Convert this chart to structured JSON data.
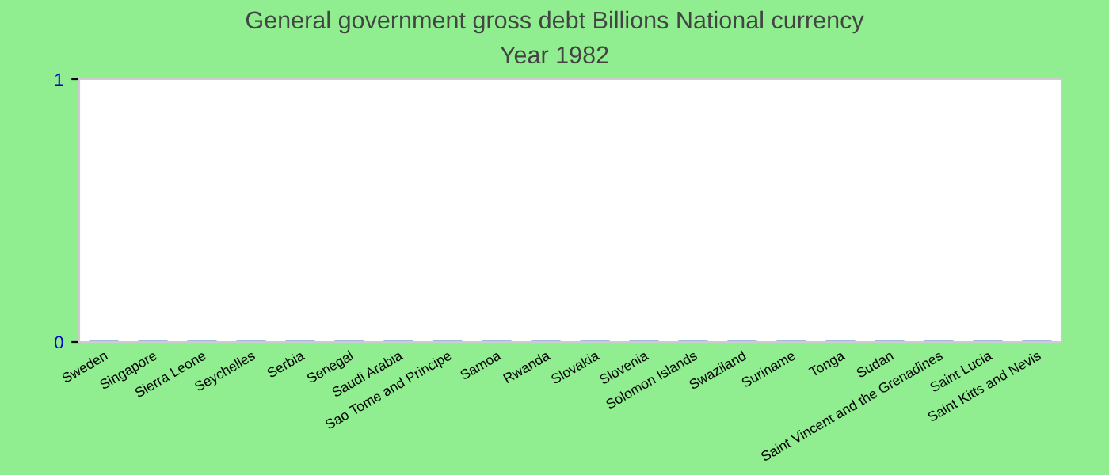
{
  "chart_data": {
    "type": "bar",
    "title": "General government gross debt Billions National currency",
    "subtitle": "Year 1982",
    "categories": [
      "Sweden",
      "Singapore",
      "Sierra Leone",
      "Seychelles",
      "Serbia",
      "Senegal",
      "Saudi Arabia",
      "Sao Tome and Principe",
      "Samoa",
      "Rwanda",
      "Slovakia",
      "Slovenia",
      "Solomon Islands",
      "Swaziland",
      "Suriname",
      "Tonga",
      "Sudan",
      "Saint Vincent and the Grenadines",
      "Saint Lucia",
      "Saint Kitts and Nevis"
    ],
    "values": [
      0,
      0,
      0,
      0,
      0,
      0,
      0,
      0,
      0,
      0,
      0,
      0,
      0,
      0,
      0,
      0,
      0,
      0,
      0,
      0
    ],
    "color": "#4472c4",
    "ylim": [
      0,
      1
    ],
    "yticks": [
      0,
      1
    ],
    "grid": false
  }
}
